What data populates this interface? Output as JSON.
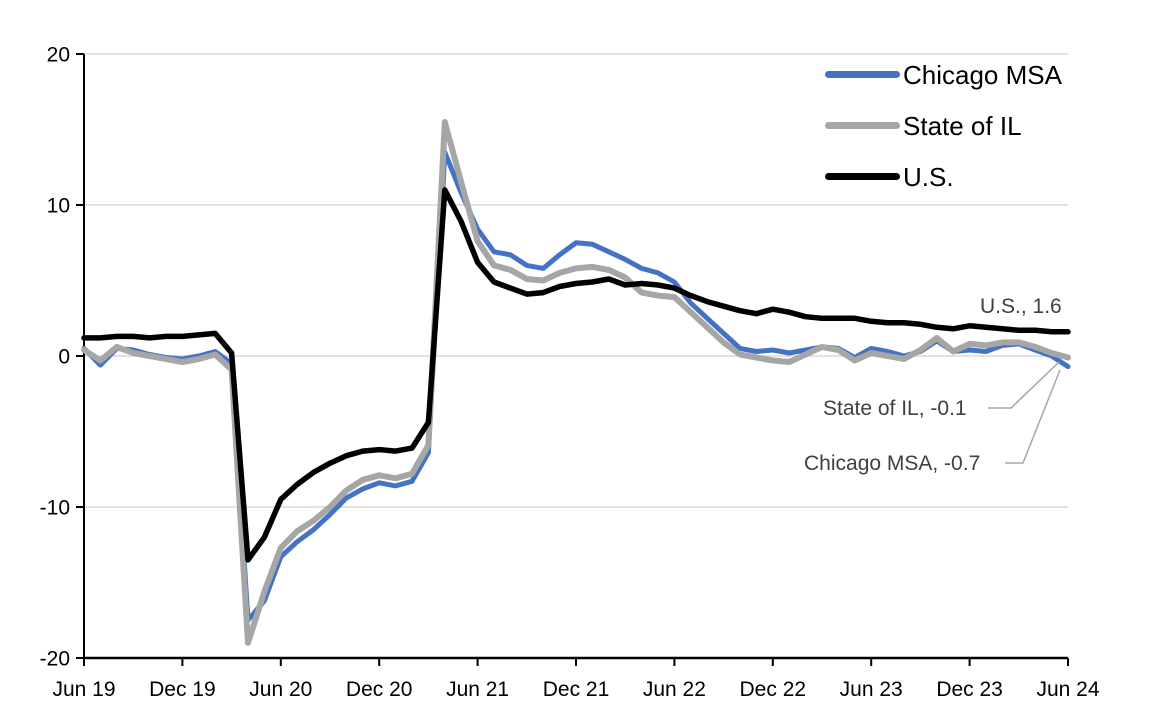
{
  "figure": {
    "background": "#FFFFFF",
    "gridline_color": "#D9D9D9",
    "axis_color": "#000000",
    "annotation_color": "#404040"
  },
  "legend": {
    "items": [
      {
        "label": "Chicago MSA",
        "color": "#4472C4"
      },
      {
        "label": "State of IL",
        "color": "#A6A6A6"
      },
      {
        "label": "U.S.",
        "color": "#000000"
      }
    ]
  },
  "annotations": [
    {
      "id": "us",
      "text": "U.S., 1.6",
      "series": "U.S.",
      "value": 1.6
    },
    {
      "id": "il",
      "text": "State of IL, -0.1",
      "series": "State of IL",
      "value": -0.1
    },
    {
      "id": "chicago",
      "text": "Chicago MSA, -0.7",
      "series": "Chicago MSA",
      "value": -0.7
    }
  ],
  "chart_data": {
    "type": "line",
    "title": "",
    "xlabel": "",
    "ylabel": "",
    "ylim": [
      -20,
      20
    ],
    "y_ticks": [
      20,
      10,
      0,
      -10,
      -20
    ],
    "grid": "horizontal",
    "legend_position": "top-right-inside",
    "x_tick_labels": [
      "Jun 19",
      "Dec 19",
      "Jun 20",
      "Dec 20",
      "Jun 21",
      "Dec 21",
      "Jun 22",
      "Dec 22",
      "Jun 23",
      "Dec 23",
      "Jun 24"
    ],
    "x": [
      "Jun 19",
      "Jul 19",
      "Aug 19",
      "Sep 19",
      "Oct 19",
      "Nov 19",
      "Dec 19",
      "Jan 20",
      "Feb 20",
      "Mar 20",
      "Apr 20",
      "May 20",
      "Jun 20",
      "Jul 20",
      "Aug 20",
      "Sep 20",
      "Oct 20",
      "Nov 20",
      "Dec 20",
      "Jan 21",
      "Feb 21",
      "Mar 21",
      "Apr 21",
      "May 21",
      "Jun 21",
      "Jul 21",
      "Aug 21",
      "Sep 21",
      "Oct 21",
      "Nov 21",
      "Dec 21",
      "Jan 22",
      "Feb 22",
      "Mar 22",
      "Apr 22",
      "May 22",
      "Jun 22",
      "Jul 22",
      "Aug 22",
      "Sep 22",
      "Oct 22",
      "Nov 22",
      "Dec 22",
      "Jan 23",
      "Feb 23",
      "Mar 23",
      "Apr 23",
      "May 23",
      "Jun 23",
      "Jul 23",
      "Aug 23",
      "Sep 23",
      "Oct 23",
      "Nov 23",
      "Dec 23",
      "Jan 24",
      "Feb 24",
      "Mar 24",
      "Apr 24",
      "May 24",
      "Jun 24"
    ],
    "series": [
      {
        "name": "Chicago MSA",
        "color": "#4472C4",
        "stroke_width": 5,
        "end_value": -0.7,
        "values": [
          0.5,
          -0.6,
          0.5,
          0.4,
          0.1,
          -0.1,
          -0.2,
          0.0,
          0.3,
          -0.5,
          -17.5,
          -16.2,
          -13.3,
          -12.3,
          -11.5,
          -10.5,
          -9.4,
          -8.8,
          -8.4,
          -8.6,
          -8.3,
          -6.4,
          13.5,
          10.8,
          8.4,
          6.9,
          6.7,
          6.0,
          5.8,
          6.7,
          7.5,
          7.4,
          6.9,
          6.4,
          5.8,
          5.5,
          4.9,
          3.5,
          2.5,
          1.5,
          0.5,
          0.3,
          0.4,
          0.2,
          0.4,
          0.6,
          0.5,
          -0.1,
          0.5,
          0.3,
          0.0,
          0.3,
          1.0,
          0.3,
          0.4,
          0.3,
          0.7,
          0.8,
          0.4,
          0.0,
          -0.7
        ]
      },
      {
        "name": "State of IL",
        "color": "#A6A6A6",
        "stroke_width": 6,
        "end_value": -0.1,
        "values": [
          0.4,
          -0.3,
          0.6,
          0.2,
          0.0,
          -0.2,
          -0.4,
          -0.2,
          0.1,
          -0.9,
          -19.0,
          -15.6,
          -12.7,
          -11.6,
          -10.9,
          -10.0,
          -8.9,
          -8.2,
          -7.9,
          -8.1,
          -7.8,
          -5.9,
          15.5,
          11.5,
          7.6,
          6.0,
          5.7,
          5.1,
          5.0,
          5.5,
          5.8,
          5.9,
          5.7,
          5.2,
          4.2,
          4.0,
          3.9,
          2.9,
          1.9,
          0.9,
          0.1,
          -0.1,
          -0.3,
          -0.4,
          0.1,
          0.6,
          0.4,
          -0.3,
          0.2,
          0.0,
          -0.2,
          0.4,
          1.2,
          0.3,
          0.8,
          0.7,
          0.9,
          0.9,
          0.6,
          0.2,
          -0.1
        ]
      },
      {
        "name": "U.S.",
        "color": "#000000",
        "stroke_width": 5.5,
        "end_value": 1.6,
        "values": [
          1.2,
          1.2,
          1.3,
          1.3,
          1.2,
          1.3,
          1.3,
          1.4,
          1.5,
          0.2,
          -13.5,
          -12.0,
          -9.5,
          -8.5,
          -7.7,
          -7.1,
          -6.6,
          -6.3,
          -6.2,
          -6.3,
          -6.1,
          -4.4,
          11.0,
          8.9,
          6.2,
          4.9,
          4.5,
          4.1,
          4.2,
          4.6,
          4.8,
          4.9,
          5.1,
          4.7,
          4.8,
          4.7,
          4.5,
          4.0,
          3.6,
          3.3,
          3.0,
          2.8,
          3.1,
          2.9,
          2.6,
          2.5,
          2.5,
          2.5,
          2.3,
          2.2,
          2.2,
          2.1,
          1.9,
          1.8,
          2.0,
          1.9,
          1.8,
          1.7,
          1.7,
          1.6,
          1.6
        ]
      }
    ]
  }
}
